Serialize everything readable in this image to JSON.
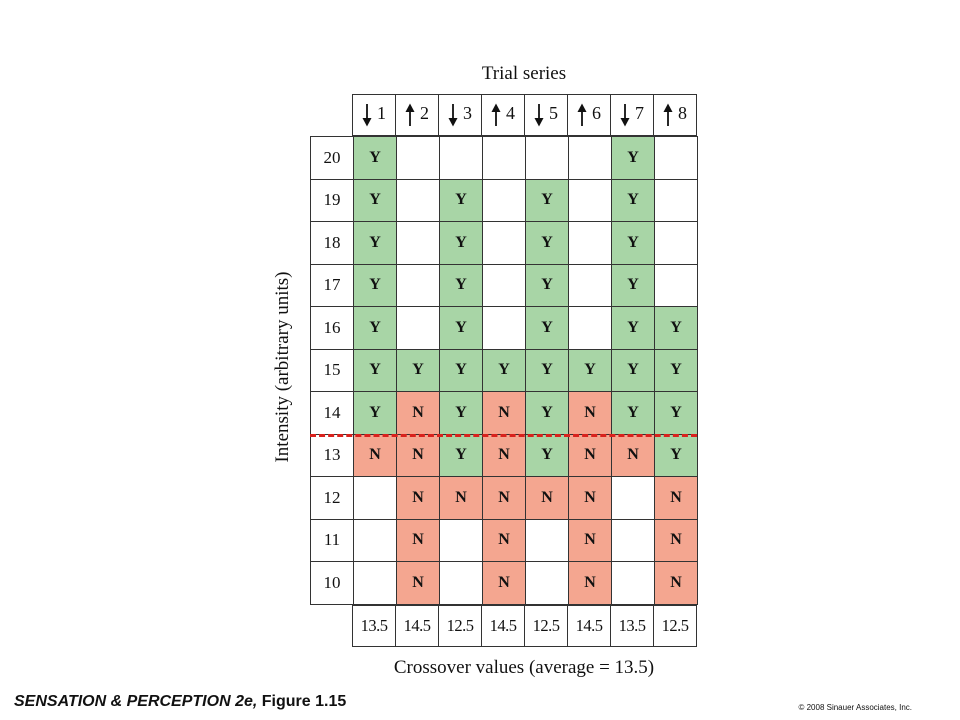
{
  "chart_data": {
    "type": "table",
    "title": "Trial series",
    "ylabel": "Intensity (arbitrary units)",
    "xlabel": "Crossover values (average = 13.5)",
    "series": [
      {
        "number": "1",
        "direction": "down"
      },
      {
        "number": "2",
        "direction": "up"
      },
      {
        "number": "3",
        "direction": "down"
      },
      {
        "number": "4",
        "direction": "up"
      },
      {
        "number": "5",
        "direction": "down"
      },
      {
        "number": "6",
        "direction": "up"
      },
      {
        "number": "7",
        "direction": "down"
      },
      {
        "number": "8",
        "direction": "up"
      }
    ],
    "rows": [
      {
        "intensity": "20",
        "responses": [
          "Y",
          "",
          "",
          "",
          "",
          "",
          "Y",
          ""
        ]
      },
      {
        "intensity": "19",
        "responses": [
          "Y",
          "",
          "Y",
          "",
          "Y",
          "",
          "Y",
          ""
        ]
      },
      {
        "intensity": "18",
        "responses": [
          "Y",
          "",
          "Y",
          "",
          "Y",
          "",
          "Y",
          ""
        ]
      },
      {
        "intensity": "17",
        "responses": [
          "Y",
          "",
          "Y",
          "",
          "Y",
          "",
          "Y",
          ""
        ]
      },
      {
        "intensity": "16",
        "responses": [
          "Y",
          "",
          "Y",
          "",
          "Y",
          "",
          "Y",
          "Y"
        ]
      },
      {
        "intensity": "15",
        "responses": [
          "Y",
          "Y",
          "Y",
          "Y",
          "Y",
          "Y",
          "Y",
          "Y"
        ]
      },
      {
        "intensity": "14",
        "responses": [
          "Y",
          "N",
          "Y",
          "N",
          "Y",
          "N",
          "Y",
          "Y"
        ]
      },
      {
        "intensity": "13",
        "responses": [
          "N",
          "N",
          "Y",
          "N",
          "Y",
          "N",
          "N",
          "Y"
        ]
      },
      {
        "intensity": "12",
        "responses": [
          "",
          "N",
          "N",
          "N",
          "N",
          "N",
          "",
          "N"
        ]
      },
      {
        "intensity": "11",
        "responses": [
          "",
          "N",
          "",
          "N",
          "",
          "N",
          "",
          "N"
        ]
      },
      {
        "intensity": "10",
        "responses": [
          "",
          "N",
          "",
          "N",
          "",
          "N",
          "",
          "N"
        ]
      }
    ],
    "crossover_values": [
      "13.5",
      "14.5",
      "12.5",
      "14.5",
      "12.5",
      "14.5",
      "13.5",
      "12.5"
    ],
    "threshold_line": {
      "between": [
        "14",
        "13"
      ],
      "color": "#d9221d",
      "style": "dashed"
    },
    "colors": {
      "yes": "#a8d5a6",
      "no": "#f4a690",
      "empty": "#ffffff"
    }
  },
  "footer": {
    "book": "SENSATION & PERCEPTION 2e,",
    "figure": "Figure 1.15",
    "copyright": "© 2008 Sinauer Associates, Inc."
  }
}
